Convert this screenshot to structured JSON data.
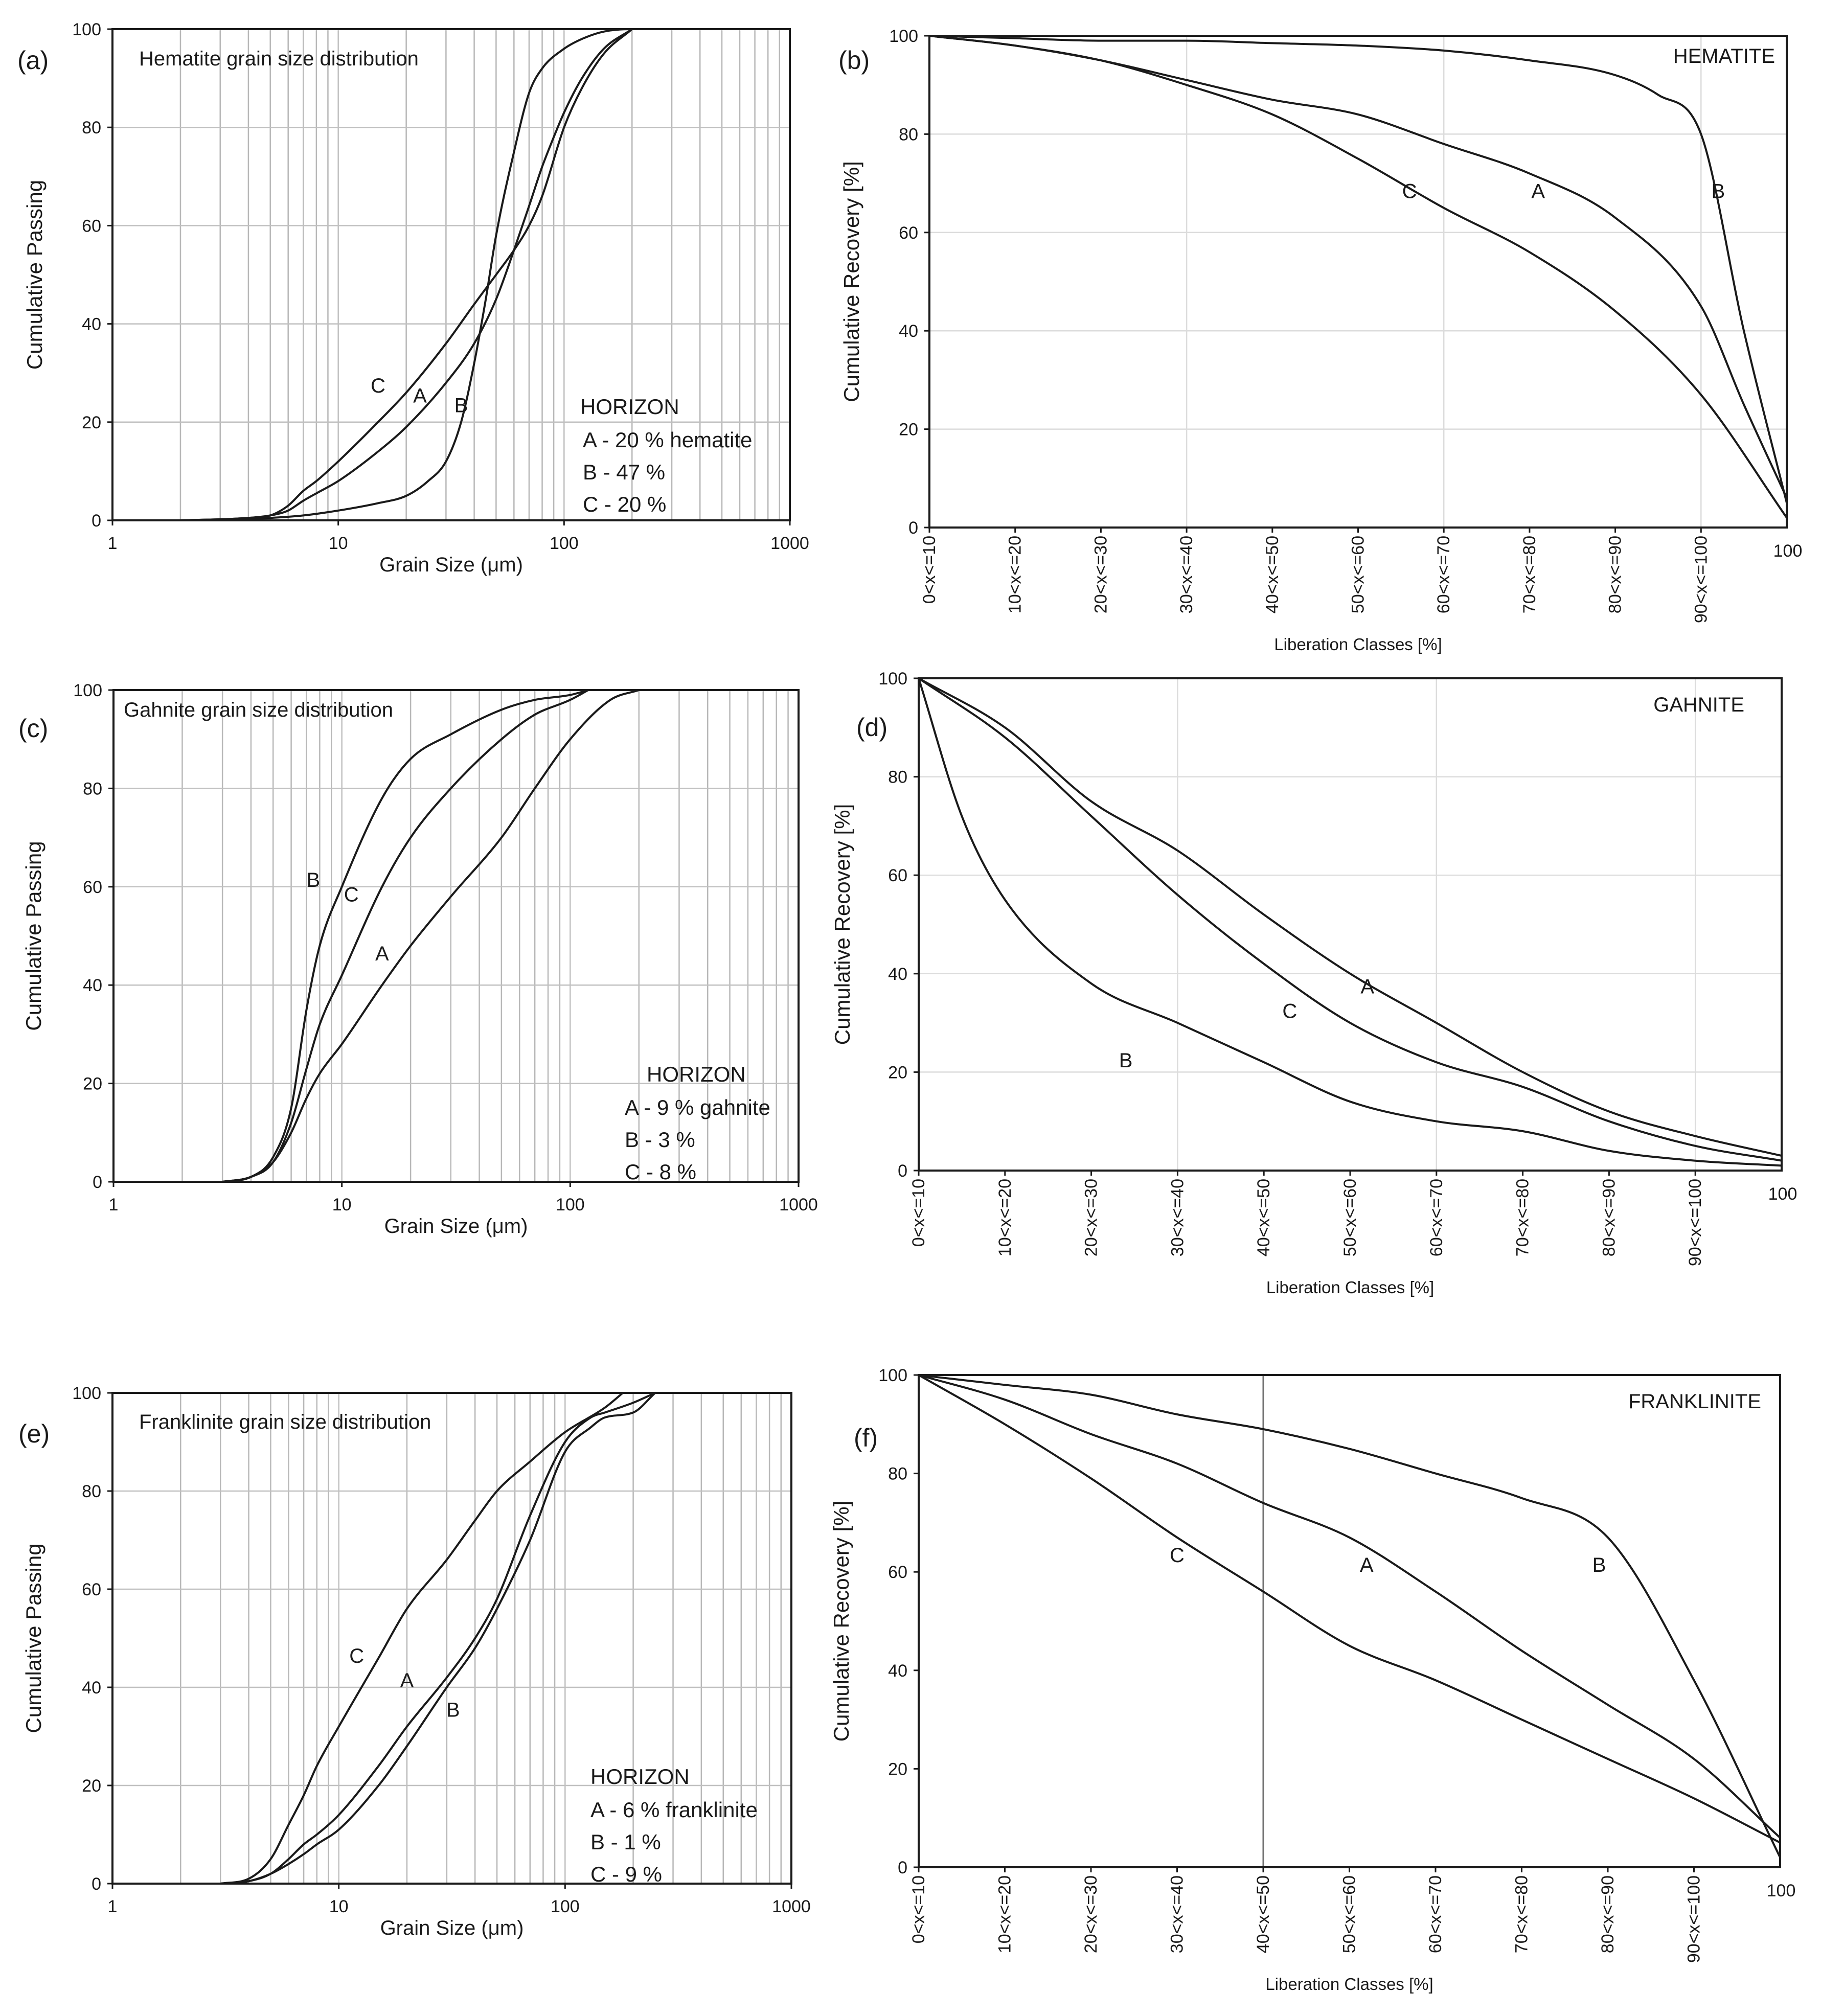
{
  "chart_data": [
    {
      "id": "a",
      "type": "line",
      "panel_label": "(a)",
      "title": "Hematite grain size distribution",
      "xlabel": "Grain Size (μm)",
      "ylabel": "Cumulative Passing",
      "xscale": "log",
      "xlim": [
        1,
        1000
      ],
      "ylim": [
        0,
        100
      ],
      "xticks": [
        "1",
        "10",
        "100",
        "1000"
      ],
      "yticks": [
        "0",
        "20",
        "40",
        "60",
        "80",
        "100"
      ],
      "legend": {
        "title": "HORIZON",
        "entries": [
          "A - 20 % hematite",
          "B - 47 %",
          "C - 20 %"
        ]
      },
      "series": [
        {
          "name": "A",
          "x": [
            2,
            4,
            5,
            6,
            7,
            8,
            10,
            15,
            20,
            30,
            40,
            50,
            60,
            70,
            80,
            90,
            100,
            120,
            150,
            200
          ],
          "y": [
            0,
            0.5,
            1,
            2,
            4,
            5.5,
            8,
            14,
            19,
            28,
            36,
            45,
            55,
            64,
            72,
            78,
            83,
            90,
            96,
            100
          ],
          "label_at": [
            23,
            24
          ]
        },
        {
          "name": "B",
          "x": [
            2,
            5,
            7,
            10,
            15,
            20,
            25,
            30,
            35,
            40,
            45,
            50,
            60,
            70,
            80,
            100,
            120,
            150,
            200,
            250
          ],
          "y": [
            0,
            0.5,
            1,
            2,
            3.5,
            5,
            8,
            12,
            20,
            32,
            45,
            58,
            75,
            87,
            92,
            96,
            98,
            99.5,
            100,
            100
          ],
          "label_at": [
            35,
            22
          ]
        },
        {
          "name": "C",
          "x": [
            2,
            4,
            5,
            6,
            7,
            8,
            10,
            15,
            20,
            30,
            40,
            50,
            60,
            70,
            80,
            100,
            120,
            150,
            200
          ],
          "y": [
            0,
            0.5,
            1,
            3,
            6,
            8,
            12,
            20,
            26,
            36,
            44,
            50,
            55,
            60,
            66,
            80,
            88,
            95,
            100
          ],
          "label_at": [
            15,
            26
          ]
        }
      ]
    },
    {
      "id": "b",
      "type": "line",
      "panel_label": "(b)",
      "title": "HEMATITE",
      "xlabel": "Liberation Classes [%]",
      "ylabel": "Cumulative Recovery [%]",
      "xlim": [
        0,
        100
      ],
      "ylim": [
        0,
        100
      ],
      "categories": [
        "0<x<=10",
        "10<x<=20",
        "20<x<=30",
        "30<x<=40",
        "40<x<=50",
        "50<x<=60",
        "60<x<=70",
        "70<x<=80",
        "80<x<=90",
        "90<x<=100"
      ],
      "end_label": "100",
      "yticks": [
        "0",
        "20",
        "40",
        "60",
        "80",
        "100"
      ],
      "series": [
        {
          "name": "A",
          "x": [
            0,
            10,
            20,
            30,
            40,
            50,
            60,
            70,
            80,
            90,
            95,
            100
          ],
          "y": [
            100,
            98,
            95,
            91,
            87,
            84,
            78,
            72,
            63,
            45,
            25,
            6
          ],
          "label_at": [
            71,
            67
          ]
        },
        {
          "name": "B",
          "x": [
            0,
            10,
            20,
            30,
            40,
            50,
            60,
            70,
            80,
            85,
            90,
            95,
            100
          ],
          "y": [
            100,
            99.5,
            99,
            99,
            98.5,
            98,
            97,
            95,
            92,
            88,
            80,
            40,
            5
          ],
          "label_at": [
            92,
            67
          ]
        },
        {
          "name": "C",
          "x": [
            0,
            10,
            20,
            30,
            40,
            50,
            60,
            70,
            80,
            90,
            100
          ],
          "y": [
            100,
            98,
            95,
            90,
            84,
            75,
            65,
            56,
            44,
            27,
            2
          ],
          "label_at": [
            56,
            67
          ]
        }
      ]
    },
    {
      "id": "c",
      "type": "line",
      "panel_label": "(c)",
      "title": "Gahnite grain size distribution",
      "xlabel": "Grain Size (μm)",
      "ylabel": "Cumulative Passing",
      "xscale": "log",
      "xlim": [
        1,
        1000
      ],
      "ylim": [
        0,
        100
      ],
      "xticks": [
        "1",
        "10",
        "100",
        "1000"
      ],
      "yticks": [
        "0",
        "20",
        "40",
        "60",
        "80",
        "100"
      ],
      "legend": {
        "title": "HORIZON",
        "entries": [
          "A - 9 % gahnite",
          "B - 3 %",
          "C - 8 %"
        ]
      },
      "series": [
        {
          "name": "A",
          "x": [
            3,
            4,
            5,
            6,
            7,
            8,
            10,
            15,
            20,
            30,
            50,
            70,
            100,
            150,
            200
          ],
          "y": [
            0,
            1,
            4,
            10,
            17,
            22,
            28,
            40,
            48,
            58,
            70,
            80,
            90,
            98,
            100
          ],
          "label_at": [
            15,
            45
          ]
        },
        {
          "name": "B",
          "x": [
            3,
            4,
            5,
            6,
            7,
            8,
            10,
            15,
            20,
            30,
            50,
            70,
            100,
            120
          ],
          "y": [
            0,
            1,
            5,
            15,
            35,
            48,
            60,
            78,
            86,
            91,
            96,
            98,
            99,
            100
          ],
          "label_at": [
            7.5,
            60
          ]
        },
        {
          "name": "C",
          "x": [
            3,
            4,
            5,
            6,
            7,
            8,
            10,
            15,
            20,
            30,
            50,
            70,
            100,
            120
          ],
          "y": [
            0,
            1,
            4,
            12,
            23,
            32,
            42,
            60,
            70,
            80,
            90,
            95,
            98,
            100
          ],
          "label_at": [
            11,
            57
          ]
        }
      ]
    },
    {
      "id": "d",
      "type": "line",
      "panel_label": "(d)",
      "title": "GAHNITE",
      "xlabel": "Liberation Classes [%]",
      "ylabel": "Cumulative Recovery [%]",
      "xlim": [
        0,
        100
      ],
      "ylim": [
        0,
        100
      ],
      "categories": [
        "0<x<=10",
        "10<x<=20",
        "20<x<=30",
        "30<x<=40",
        "40<x<=50",
        "50<x<=60",
        "60<x<=70",
        "70<x<=80",
        "80<x<=90",
        "90<x<=100"
      ],
      "end_label": "100",
      "yticks": [
        "0",
        "20",
        "40",
        "60",
        "80",
        "100"
      ],
      "series": [
        {
          "name": "A",
          "x": [
            0,
            10,
            20,
            30,
            40,
            50,
            60,
            70,
            80,
            90,
            100
          ],
          "y": [
            100,
            90,
            75,
            65,
            52,
            40,
            30,
            20,
            12,
            7,
            3
          ],
          "label_at": [
            52,
            36
          ]
        },
        {
          "name": "B",
          "x": [
            0,
            5,
            10,
            20,
            30,
            40,
            50,
            60,
            70,
            80,
            90,
            100
          ],
          "y": [
            100,
            72,
            55,
            38,
            30,
            22,
            14,
            10,
            8,
            4,
            2,
            1
          ],
          "label_at": [
            24,
            21
          ]
        },
        {
          "name": "C",
          "x": [
            0,
            10,
            20,
            30,
            40,
            50,
            60,
            70,
            80,
            90,
            100
          ],
          "y": [
            100,
            88,
            72,
            56,
            42,
            30,
            22,
            17,
            10,
            5,
            2
          ],
          "label_at": [
            43,
            31
          ]
        }
      ]
    },
    {
      "id": "e",
      "type": "line",
      "panel_label": "(e)",
      "title": "Franklinite grain size distribution",
      "xlabel": "Grain Size (μm)",
      "ylabel": "Cumulative Passing",
      "xscale": "log",
      "xlim": [
        1,
        1000
      ],
      "ylim": [
        0,
        100
      ],
      "xticks": [
        "1",
        "10",
        "100",
        "1000"
      ],
      "yticks": [
        "0",
        "20",
        "40",
        "60",
        "80",
        "100"
      ],
      "legend": {
        "title": "HORIZON",
        "entries": [
          "A - 6 % franklinite",
          "B - 1 %",
          "C - 9 %"
        ]
      },
      "series": [
        {
          "name": "A",
          "x": [
            3,
            4,
            5,
            6,
            7,
            8,
            10,
            15,
            20,
            30,
            40,
            50,
            70,
            100,
            130,
            150,
            200,
            250
          ],
          "y": [
            0,
            0.5,
            2,
            5,
            8,
            10,
            14,
            24,
            32,
            42,
            50,
            58,
            75,
            90,
            95,
            96,
            98,
            100
          ],
          "label_at": [
            20,
            40
          ]
        },
        {
          "name": "B",
          "x": [
            3,
            4,
            5,
            6,
            7,
            8,
            10,
            15,
            20,
            30,
            40,
            50,
            70,
            100,
            130,
            150,
            200,
            250
          ],
          "y": [
            0,
            0.5,
            2,
            4,
            6,
            8,
            11,
            20,
            28,
            40,
            48,
            56,
            70,
            88,
            93,
            95,
            96,
            100
          ],
          "label_at": [
            32,
            34
          ]
        },
        {
          "name": "C",
          "x": [
            3,
            4,
            5,
            6,
            7,
            8,
            10,
            15,
            20,
            30,
            40,
            50,
            70,
            100,
            150,
            180
          ],
          "y": [
            0,
            1,
            5,
            12,
            18,
            24,
            32,
            46,
            56,
            66,
            74,
            80,
            86,
            92,
            97,
            100
          ],
          "label_at": [
            12,
            45
          ]
        }
      ]
    },
    {
      "id": "f",
      "type": "line",
      "panel_label": "(f)",
      "title": "FRANKLINITE",
      "xlabel": "Liberation Classes [%]",
      "ylabel": "Cumulative Recovery [%]",
      "xlim": [
        0,
        100
      ],
      "ylim": [
        0,
        100
      ],
      "categories": [
        "0<x<=10",
        "10<x<=20",
        "20<x<=30",
        "30<x<=40",
        "40<x<=50",
        "50<x<=60",
        "60<x<=70",
        "70<x<=80",
        "80<x<=90",
        "90<x<=100"
      ],
      "end_label": "100",
      "yticks": [
        "0",
        "20",
        "40",
        "60",
        "80",
        "100"
      ],
      "series": [
        {
          "name": "A",
          "x": [
            0,
            10,
            20,
            30,
            40,
            50,
            60,
            70,
            80,
            90,
            100
          ],
          "y": [
            100,
            95,
            88,
            82,
            74,
            67,
            56,
            44,
            33,
            22,
            6
          ],
          "label_at": [
            52,
            60
          ]
        },
        {
          "name": "B",
          "x": [
            0,
            10,
            20,
            30,
            40,
            50,
            60,
            70,
            80,
            90,
            100
          ],
          "y": [
            100,
            98,
            96,
            92,
            89,
            85,
            80,
            75,
            67,
            38,
            2
          ],
          "label_at": [
            79,
            60
          ]
        },
        {
          "name": "C",
          "x": [
            0,
            10,
            20,
            30,
            40,
            50,
            60,
            70,
            80,
            90,
            100
          ],
          "y": [
            100,
            90,
            79,
            67,
            56,
            45,
            38,
            30,
            22,
            14,
            5
          ],
          "label_at": [
            30,
            62
          ]
        }
      ]
    }
  ]
}
